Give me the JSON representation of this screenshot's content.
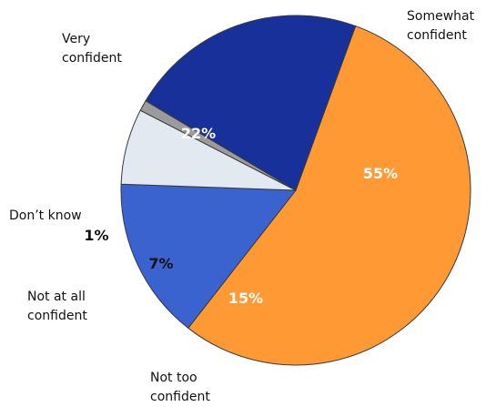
{
  "chart_data": {
    "type": "pie",
    "title": "",
    "categories": [
      "Somewhat confident",
      "Not too confident",
      "Not at all confident",
      "Don’t know",
      "Very confident"
    ],
    "values": [
      55,
      15,
      7,
      1,
      22
    ],
    "value_labels": [
      "55%",
      "15%",
      "7%",
      "1%",
      "22%"
    ],
    "label_lines": [
      [
        "Somewhat",
        "confident"
      ],
      [
        "Not too",
        "confident"
      ],
      [
        "Not at all",
        "confident"
      ],
      [
        "Don’t know"
      ],
      [
        "Very",
        "confident"
      ]
    ],
    "colors": [
      "#FF9933",
      "#3A63CF",
      "#E3E9F1",
      "#9B9B9B",
      "#17309A"
    ],
    "value_label_colors": [
      "#ffffff",
      "#ffffff",
      "#111111",
      "#111111",
      "#ffffff"
    ],
    "start_angle_deg": 20,
    "direction": "clockwise",
    "legend": "none"
  }
}
